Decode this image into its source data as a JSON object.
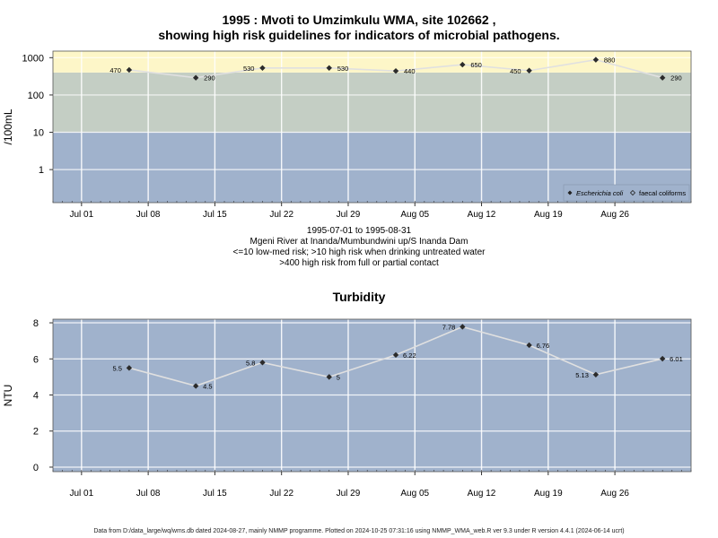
{
  "chart1": {
    "title_line1": "1995 : Mvoti to Umzimkulu WMA, site 102662 ,",
    "title_line2": "showing high risk guidelines for indicators of microbial pathogens.",
    "ylabel": "/100mL",
    "subtitle": [
      "1995-07-01 to 1995-08-31",
      "Mgeni River at Inanda/Mumbundwini up/S Inanda Dam",
      "<=10 low-med risk; >10 high risk when drinking untreated water",
      ">400 high risk from full or partial contact"
    ],
    "legend": [
      {
        "label": "Escherichia coli",
        "marker": "filled-diamond"
      },
      {
        "label": "faecal coliforms",
        "marker": "open-diamond"
      }
    ],
    "bands": [
      {
        "from": 0,
        "to": 10,
        "color": "#a0b2cc"
      },
      {
        "from": 10,
        "to": 400,
        "color": "#c4cec4"
      },
      {
        "from": 400,
        "to": 1500,
        "color": "#fdf6c8"
      }
    ]
  },
  "chart2": {
    "title": "Turbidity",
    "ylabel": "NTU"
  },
  "x_ticks": [
    "Jul 01",
    "Jul 08",
    "Jul 15",
    "Jul 22",
    "Jul 29",
    "Aug 05",
    "Aug 12",
    "Aug 19",
    "Aug 26"
  ],
  "footer": "Data from D:/data_large/wq/wms.db dated 2024-08-27, mainly NMMP programme. Plotted on 2024-10-25 07:31:16 using NMMP_WMA_web.R ver 9.3 under R version 4.4.1 (2024-06-14 ucrt)",
  "chart_data": [
    {
      "type": "scatter",
      "title": "1995 : Mvoti to Umzimkulu WMA, site 102662 , showing high risk guidelines for indicators of microbial pathogens.",
      "ylabel": "/100mL",
      "yscale": "log",
      "y_ticks": [
        "1",
        "10",
        "100",
        "1000"
      ],
      "xlim": [
        "1995-06-28",
        "1995-09-03"
      ],
      "ylim": [
        0.13,
        1500
      ],
      "grid": true,
      "legend_position": "bottom-right",
      "series": [
        {
          "name": "Escherichia coli",
          "color": "#2b2b2b",
          "x": [
            "1995-07-06",
            "1995-07-13",
            "1995-07-20",
            "1995-07-27",
            "1995-08-03",
            "1995-08-10",
            "1995-08-17",
            "1995-08-24",
            "1995-08-31"
          ],
          "values": [
            470,
            290,
            530,
            530,
            440,
            650,
            450,
            880,
            290
          ],
          "labels": [
            "470",
            "290",
            "530",
            "530",
            "440",
            "650",
            "450",
            "880",
            "290"
          ]
        }
      ]
    },
    {
      "type": "line",
      "title": "Turbidity",
      "ylabel": "NTU",
      "y_ticks": [
        "0",
        "2",
        "4",
        "6",
        "8"
      ],
      "xlim": [
        "1995-06-28",
        "1995-09-03"
      ],
      "ylim": [
        -0.25,
        8.2
      ],
      "grid": true,
      "series": [
        {
          "name": "",
          "color": "#2b2b2b",
          "x": [
            "1995-07-06",
            "1995-07-13",
            "1995-07-20",
            "1995-07-27",
            "1995-08-03",
            "1995-08-10",
            "1995-08-17",
            "1995-08-24",
            "1995-08-31"
          ],
          "values": [
            5.5,
            4.5,
            5.8,
            5,
            6.22,
            7.78,
            6.76,
            5.13,
            6.01
          ],
          "labels": [
            "5.5",
            "4.5",
            "5.8",
            "5",
            "6.22",
            "7.78",
            "6.76",
            "5.13",
            "6.01"
          ]
        }
      ]
    }
  ]
}
